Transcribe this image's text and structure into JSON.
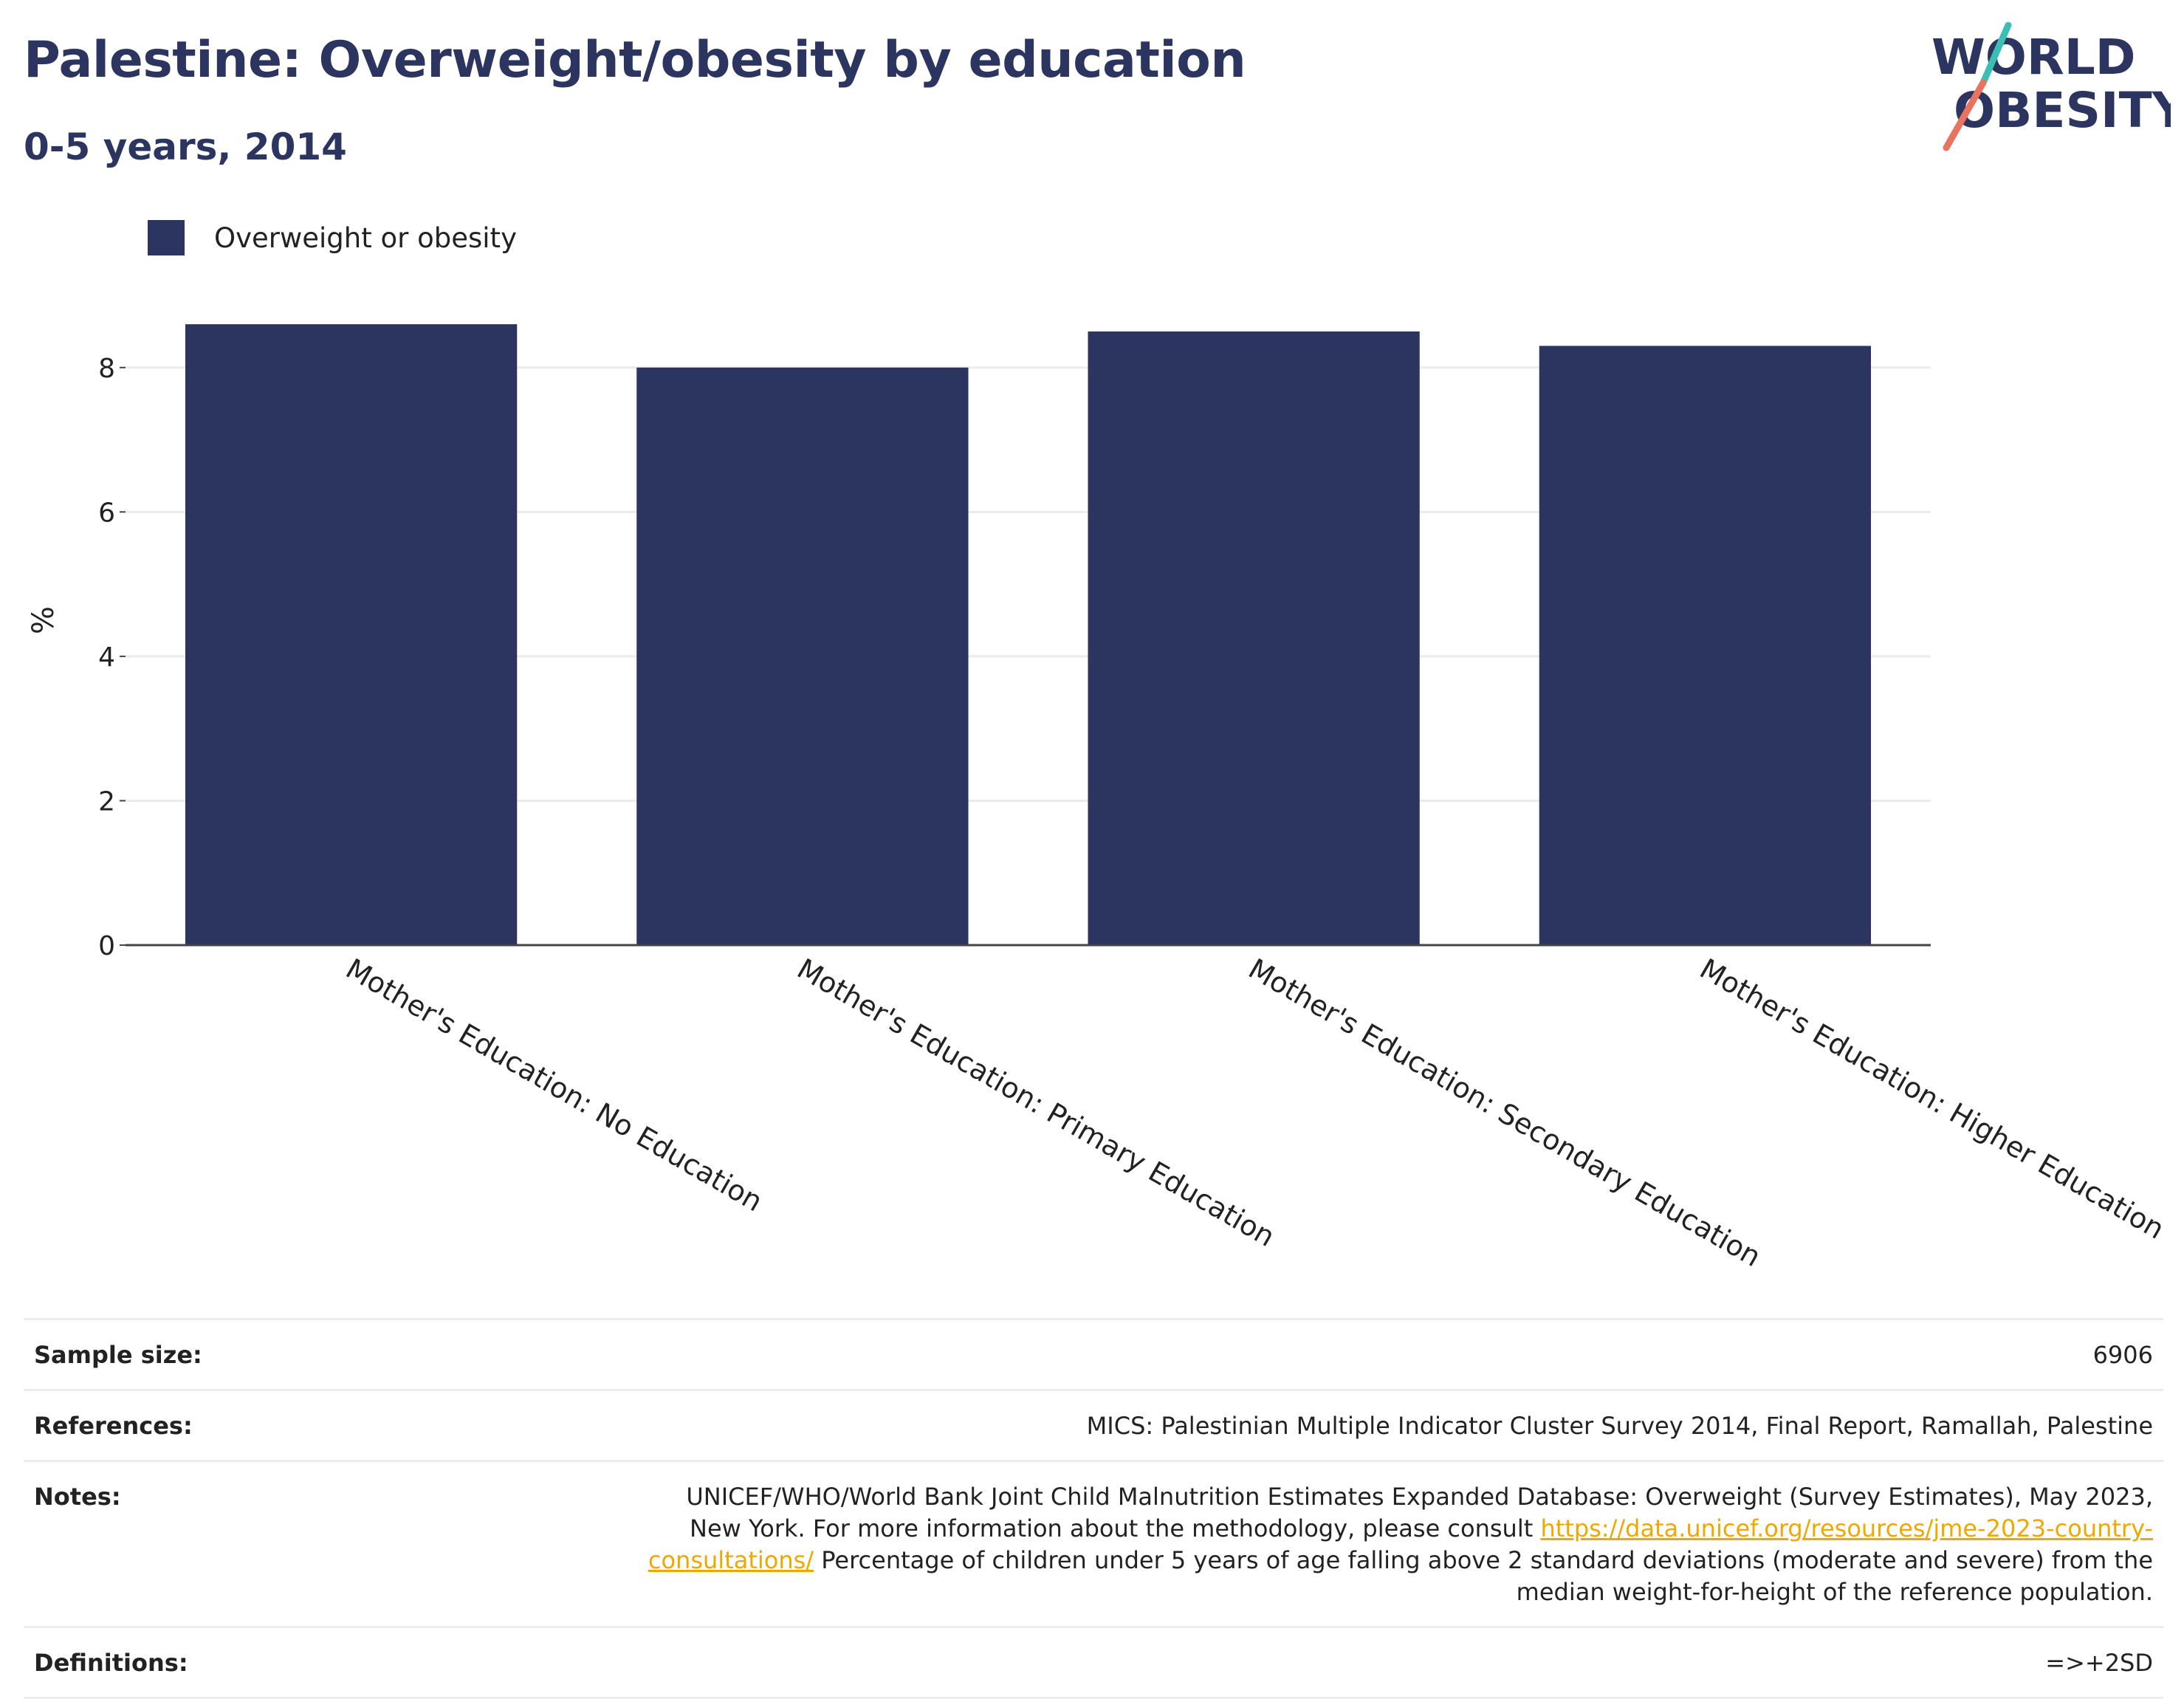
{
  "header": {
    "title": "Palestine: Overweight/obesity by education",
    "subtitle": "0-5 years, 2014"
  },
  "logo": {
    "line1": "WORLD",
    "line2": "OBESITY"
  },
  "colors": {
    "bar": "#2b3560",
    "title": "#2b3560",
    "logo_slash_top": "#3bbfb4",
    "logo_slash_bottom": "#e8735f",
    "link": "#f0a800"
  },
  "chart_data": {
    "type": "bar",
    "categories": [
      "Mother's Education: No Education",
      "Mother's Education: Primary Education",
      "Mother's Education: Secondary Education",
      "Mother's Education: Higher Education"
    ],
    "series": [
      {
        "name": "Overweight or obesity",
        "values": [
          8.6,
          8.0,
          8.5,
          8.3
        ]
      }
    ],
    "ylabel": "%",
    "ylim": [
      0,
      9
    ],
    "yticks": [
      "0",
      "2",
      "4",
      "6",
      "8"
    ],
    "grid": true,
    "legend_position": "top-left"
  },
  "meta": [
    {
      "label": "Sample size:",
      "value": "6906"
    },
    {
      "label": "References:",
      "value": "MICS: Palestinian Multiple Indicator Cluster Survey 2014, Final Report, Ramallah, Palestine"
    },
    {
      "label": "Notes:",
      "value_before": "UNICEF/WHO/World Bank Joint Child Malnutrition Estimates Expanded Database: Overweight (Survey Estimates), May 2023, New York. For more information about the methodology, please consult ",
      "link": "https://data.unicef.org/resources/jme-2023-country-consultations/",
      "value_after": " Percentage of children under 5 years of age falling above 2 standard deviations (moderate and severe) from the median weight-for-height of the reference population."
    },
    {
      "label": "Definitions:",
      "value": "=>+2SD"
    }
  ]
}
